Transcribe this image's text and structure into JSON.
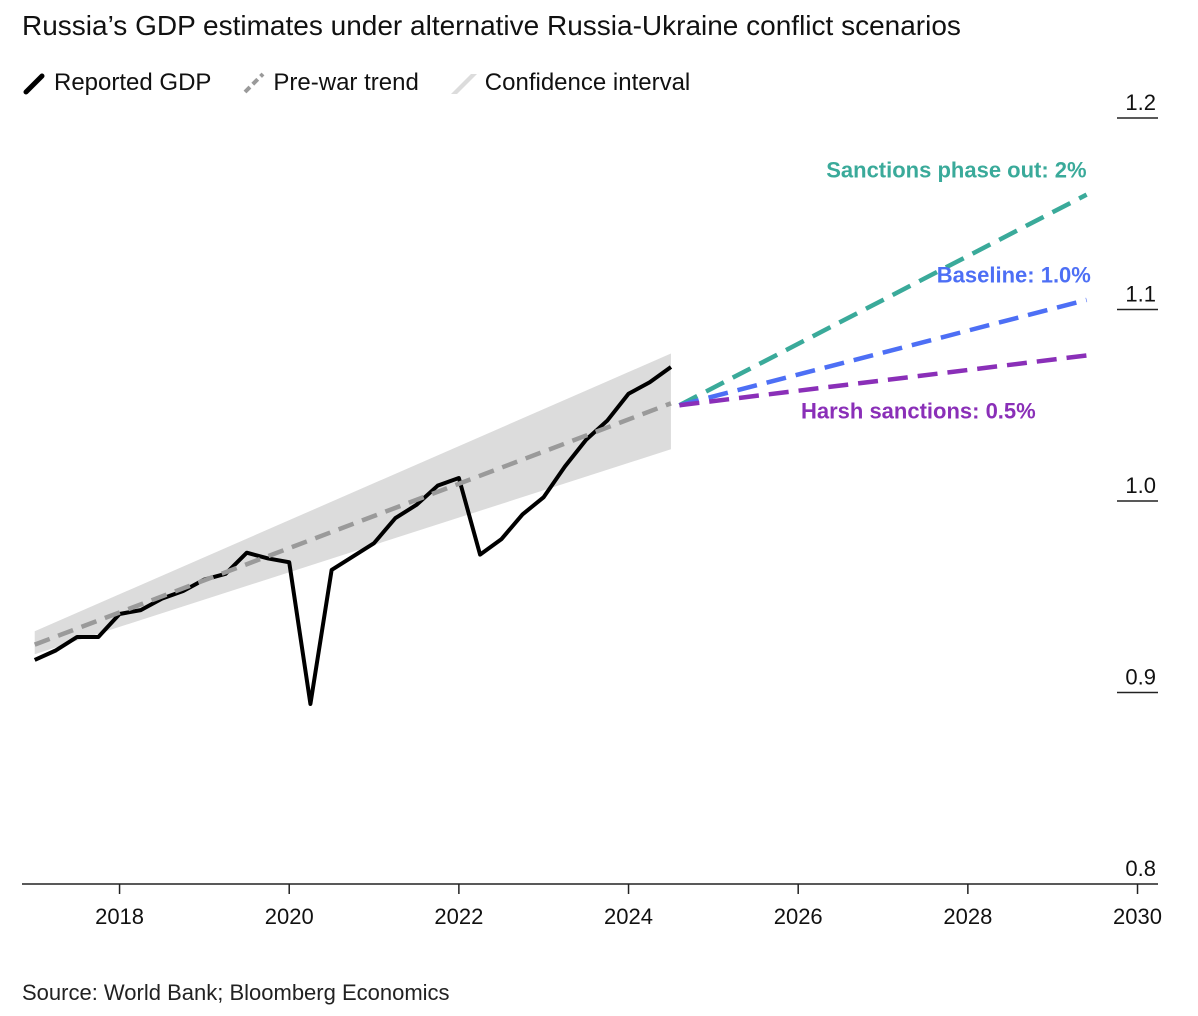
{
  "title": "Russia’s GDP estimates under alternative Russia-Ukraine conflict scenarios",
  "legend": {
    "reported": "Reported GDP",
    "trend": "Pre-war trend",
    "ci": "Confidence interval"
  },
  "source": "Source: World Bank; Bloomberg Economics",
  "colors": {
    "reported": "#000000",
    "trend": "#9a9a9a",
    "ci": "#dcdcdc",
    "sanctions_phase_out": "#3aaa9a",
    "baseline": "#4d6ff5",
    "harsh": "#8a2fb8"
  },
  "chart_data": {
    "type": "line",
    "xlim": [
      2016.85,
      2030.1
    ],
    "ylim": [
      0.8,
      1.2
    ],
    "x_ticks": [
      2018,
      2020,
      2022,
      2024,
      2026,
      2028,
      2030
    ],
    "x_tick_labels": [
      "2018",
      "2020",
      "2022",
      "2024",
      "2026",
      "2028",
      "2030"
    ],
    "y_ticks": [
      0.8,
      0.9,
      1.0,
      1.1,
      1.2
    ],
    "y_tick_labels": [
      "0.8",
      "0.9",
      "1.0",
      "1.1",
      "1.2"
    ],
    "y_axis_position": "right",
    "series": [
      {
        "name": "Reported GDP",
        "style": "solid",
        "x": [
          2017.0,
          2017.25,
          2017.5,
          2017.75,
          2018.0,
          2018.25,
          2018.5,
          2018.75,
          2019.0,
          2019.25,
          2019.5,
          2019.75,
          2020.0,
          2020.25,
          2020.5,
          2020.75,
          2021.0,
          2021.25,
          2021.5,
          2021.75,
          2022.0,
          2022.25,
          2022.5,
          2022.75,
          2023.0,
          2023.25,
          2023.5,
          2023.75,
          2024.0,
          2024.25,
          2024.5
        ],
        "y": [
          0.917,
          0.922,
          0.929,
          0.929,
          0.941,
          0.943,
          0.949,
          0.953,
          0.959,
          0.962,
          0.973,
          0.97,
          0.968,
          0.894,
          0.964,
          0.971,
          0.978,
          0.991,
          0.998,
          1.008,
          1.012,
          0.972,
          0.98,
          0.993,
          1.002,
          1.018,
          1.032,
          1.042,
          1.056,
          1.062,
          1.07
        ]
      },
      {
        "name": "Pre-war trend",
        "style": "dashed",
        "x": [
          2017.0,
          2024.5
        ],
        "y": [
          0.925,
          1.051
        ]
      },
      {
        "name": "Sanctions phase out: 2%",
        "style": "dashed",
        "x": [
          2024.6,
          2029.4
        ],
        "y": [
          1.05,
          1.16
        ]
      },
      {
        "name": "Baseline: 1.0%",
        "style": "dashed",
        "x": [
          2024.6,
          2029.4
        ],
        "y": [
          1.05,
          1.105
        ]
      },
      {
        "name": "Harsh sanctions: 0.5%",
        "style": "dashed",
        "x": [
          2024.6,
          2029.4
        ],
        "y": [
          1.05,
          1.076
        ]
      }
    ],
    "confidence_interval": {
      "name": "Confidence interval",
      "x": [
        2017.0,
        2024.5
      ],
      "lower": [
        0.92,
        1.027
      ],
      "upper": [
        0.932,
        1.077
      ]
    },
    "annotations": [
      {
        "series": 2,
        "text": "Sanctions phase out: 2%",
        "x": 2029.4,
        "y": 1.169
      },
      {
        "series": 3,
        "text": "Baseline: 1.0%",
        "x": 2029.45,
        "y": 1.114
      },
      {
        "series": 4,
        "text": "Harsh sanctions: 0.5%",
        "x": 2028.8,
        "y": 1.043
      }
    ]
  }
}
